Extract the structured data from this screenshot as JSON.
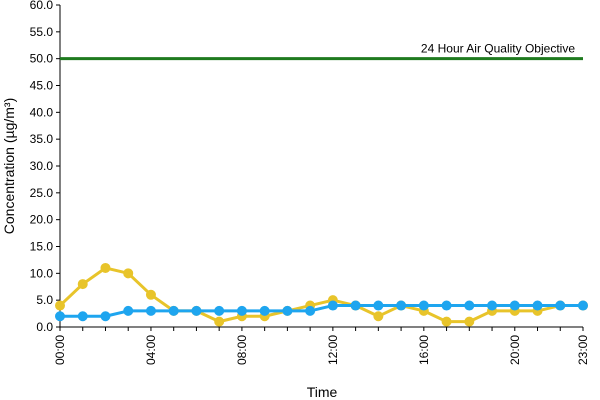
{
  "chart_data": {
    "type": "line",
    "title": "",
    "xlabel": "Time",
    "ylabel": "Concentration (µg/m³)",
    "ylim": [
      0,
      60
    ],
    "yticks": [
      "0.0",
      "5.0",
      "10.0",
      "15.0",
      "20.0",
      "25.0",
      "30.0",
      "35.0",
      "40.0",
      "45.0",
      "50.0",
      "55.0",
      "60.0"
    ],
    "xticks": [
      "00:00",
      "04:00",
      "08:00",
      "12:00",
      "16:00",
      "20:00",
      "23:00"
    ],
    "x": [
      "00:00",
      "01:00",
      "02:00",
      "03:00",
      "04:00",
      "05:00",
      "06:00",
      "07:00",
      "08:00",
      "09:00",
      "10:00",
      "11:00",
      "12:00",
      "13:00",
      "14:00",
      "15:00",
      "16:00",
      "17:00",
      "18:00",
      "19:00",
      "20:00",
      "21:00",
      "22:00",
      "23:00"
    ],
    "grid": false,
    "series": [
      {
        "color": "#1ea5ef",
        "values": [
          2,
          2,
          2,
          3,
          3,
          3,
          3,
          3,
          3,
          3,
          3,
          3,
          4,
          4,
          4,
          4,
          4,
          4,
          4,
          4,
          4,
          4,
          4,
          4
        ]
      },
      {
        "color": "#e8c42a",
        "values": [
          4,
          8,
          11,
          10,
          6,
          3,
          3,
          1,
          2,
          2,
          3,
          4,
          5,
          4,
          2,
          4,
          3,
          1,
          1,
          3,
          3,
          3,
          4,
          4
        ]
      }
    ],
    "reference_line": {
      "label": "24 Hour Air Quality Objective",
      "value": 50,
      "color": "#1e7a1e"
    }
  }
}
